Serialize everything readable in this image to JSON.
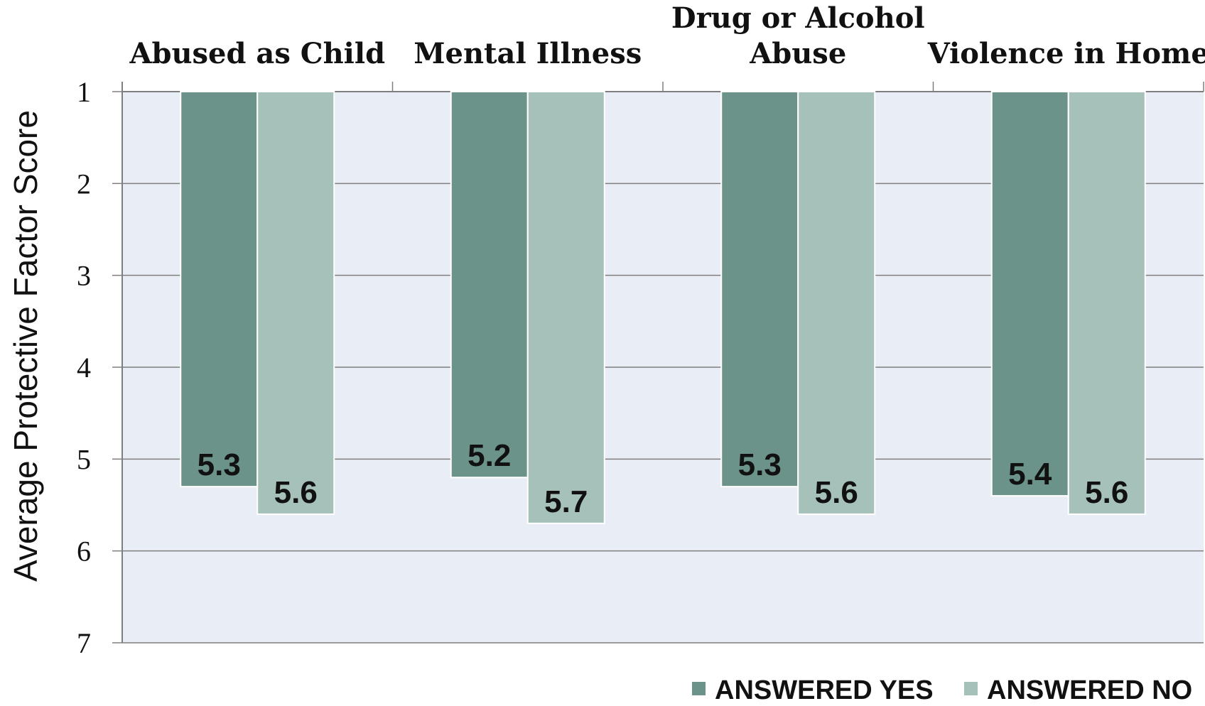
{
  "chart_data": {
    "type": "bar",
    "categories": [
      "Abused as Child",
      "Mental Illness",
      "Drug or Alcohol Abuse",
      "Violence in Home"
    ],
    "category_lines": [
      [
        "Abused as Child"
      ],
      [
        "Mental Illness"
      ],
      [
        "Drug or Alcohol",
        "Abuse"
      ],
      [
        "Violence in Home"
      ]
    ],
    "series": [
      {
        "name": "ANSWERED YES",
        "values": [
          5.3,
          5.2,
          5.3,
          5.4
        ],
        "labels": [
          "5.3",
          "5.2",
          "5.3",
          "5.4"
        ],
        "color": "#6b9389"
      },
      {
        "name": "ANSWERED NO",
        "values": [
          5.6,
          5.7,
          5.6,
          5.6
        ],
        "labels": [
          "5.6",
          "5.7",
          "5.6",
          "5.6"
        ],
        "color": "#a6c1b9"
      }
    ],
    "title": "",
    "xlabel": "",
    "ylabel": "Average Protective Factor Score",
    "ylim": [
      1,
      7
    ],
    "y_inverted": true,
    "yticks": [
      "1",
      "2",
      "3",
      "4",
      "5",
      "6",
      "7"
    ],
    "x_axis_position": "top",
    "grid": true,
    "legend_position": "bottom-right",
    "plot_background": "#e9edf5"
  }
}
